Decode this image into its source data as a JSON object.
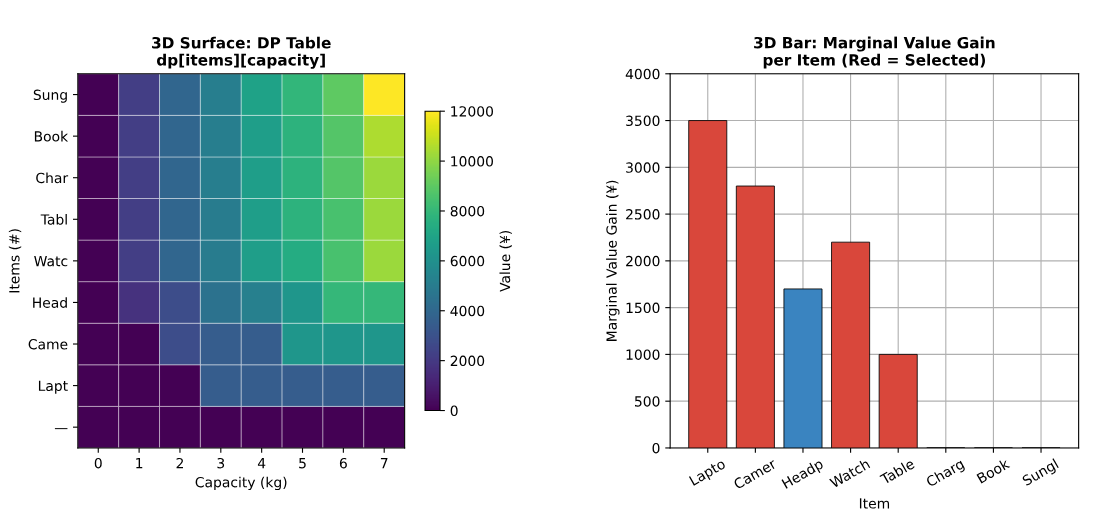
{
  "chart_data": [
    {
      "type": "heatmap",
      "title": "3D Surface: DP Table\ndp[items][capacity]",
      "xlabel": "Capacity (kg)",
      "ylabel": "Items (#)",
      "clabel": "Value (¥)",
      "categories": [
        "0",
        "1",
        "2",
        "3",
        "4",
        "5",
        "6",
        "7"
      ],
      "y_categories": [
        "Sung",
        "Book",
        "Char",
        "Tabl",
        "Watc",
        "Head",
        "Came",
        "Lapt",
        "—"
      ],
      "cells": [
        [
          0,
          2200,
          3900,
          5100,
          6900,
          7900,
          9000,
          12000
        ],
        [
          0,
          2200,
          3900,
          5100,
          6700,
          7700,
          8800,
          10500
        ],
        [
          0,
          2200,
          3900,
          5100,
          6700,
          7700,
          8800,
          10200
        ],
        [
          0,
          2200,
          3900,
          5000,
          6700,
          7700,
          8500,
          10200
        ],
        [
          0,
          2200,
          3900,
          5000,
          6700,
          7400,
          8500,
          10200
        ],
        [
          0,
          1700,
          2800,
          4500,
          5200,
          6300,
          8000,
          8000
        ],
        [
          0,
          0,
          2800,
          3500,
          3500,
          6300,
          6300,
          6300
        ],
        [
          0,
          0,
          0,
          3500,
          3500,
          3500,
          3500,
          3500
        ],
        [
          0,
          0,
          0,
          0,
          0,
          0,
          0,
          0
        ]
      ],
      "clim": [
        0,
        12000
      ],
      "cticks": [
        0,
        2000,
        4000,
        6000,
        8000,
        10000,
        12000
      ]
    },
    {
      "type": "bar",
      "title": "3D Bar: Marginal Value Gain\nper Item (Red = Selected)",
      "xlabel": "Item",
      "ylabel": "Marginal Value Gain (¥)",
      "categories": [
        "Lapto",
        "Camer",
        "Headp",
        "Watch",
        "Table",
        "Charg",
        "Book",
        "Sungl"
      ],
      "values": [
        3500,
        2800,
        1700,
        2200,
        1000,
        0,
        0,
        0
      ],
      "colors": [
        "#d9473b",
        "#d9473b",
        "#3a84c0",
        "#d9473b",
        "#d9473b",
        "#3a84c0",
        "#3a84c0",
        "#3a84c0"
      ],
      "ylim": [
        0,
        4000
      ],
      "yticks": [
        0,
        500,
        1000,
        1500,
        2000,
        2500,
        3000,
        3500,
        4000
      ],
      "grid": true
    }
  ]
}
